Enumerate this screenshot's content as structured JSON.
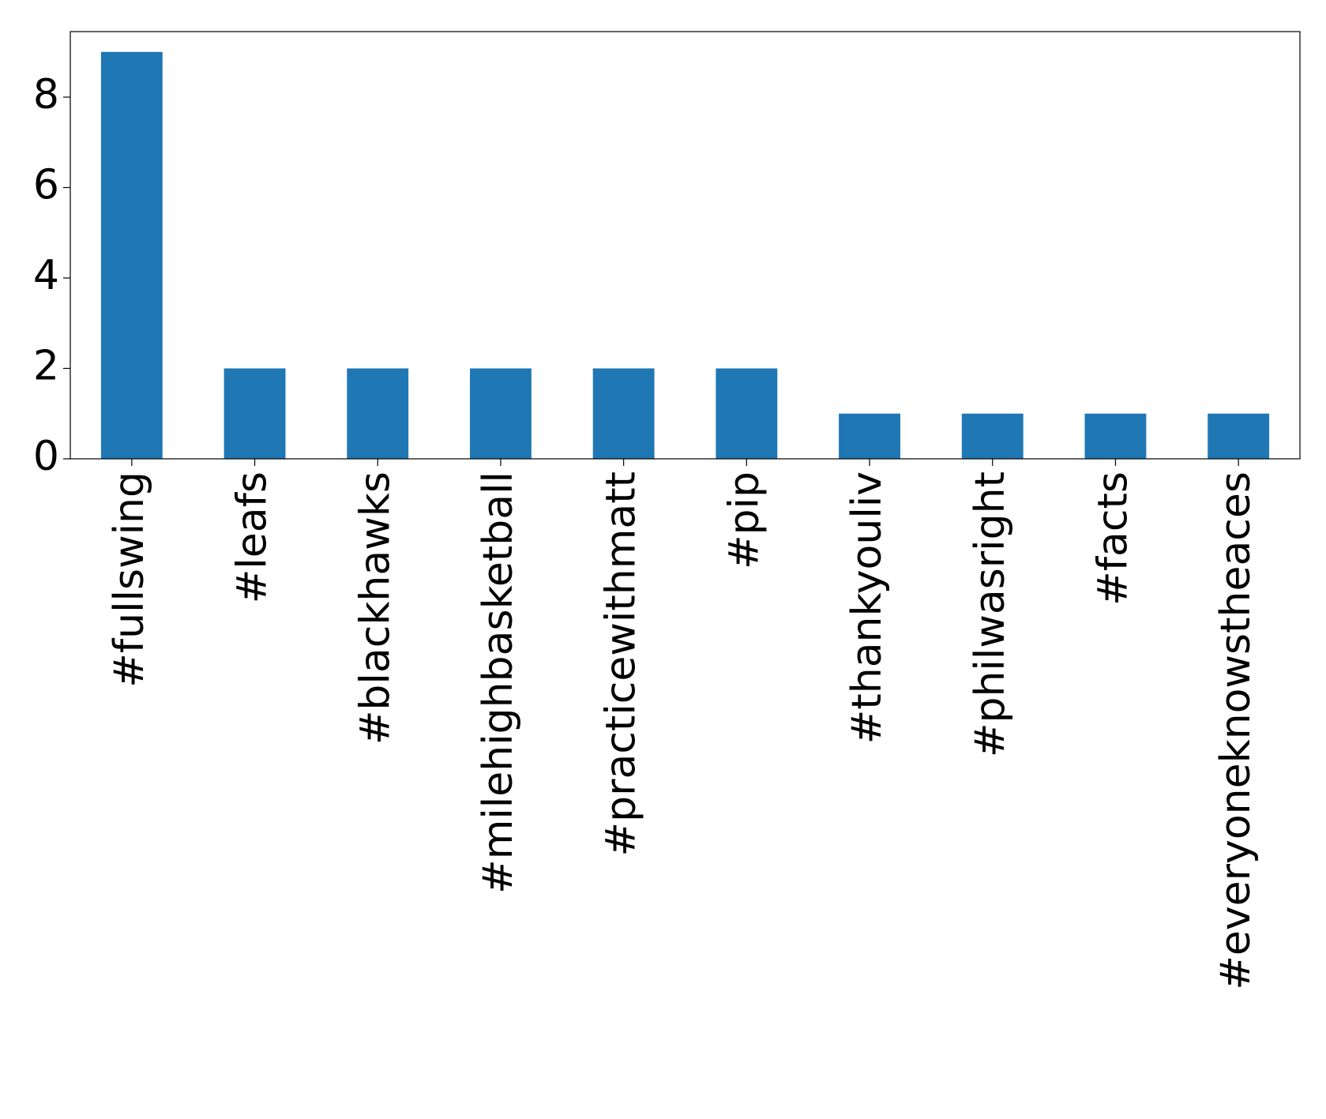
{
  "chart_data": {
    "type": "bar",
    "categories": [
      "#fullswing",
      "#leafs",
      "#blackhawks",
      "#milehighbasketball",
      "#practicewithmatt",
      "#pip",
      "#thankyouliv",
      "#philwasright",
      "#facts",
      "#everyoneknowstheaces"
    ],
    "values": [
      9,
      2,
      2,
      2,
      2,
      2,
      1,
      1,
      1,
      1
    ],
    "color": "#1f77b4",
    "ylim": [
      0,
      9.45
    ],
    "yticks": [
      0,
      2,
      4,
      6,
      8
    ],
    "grid": false
  }
}
